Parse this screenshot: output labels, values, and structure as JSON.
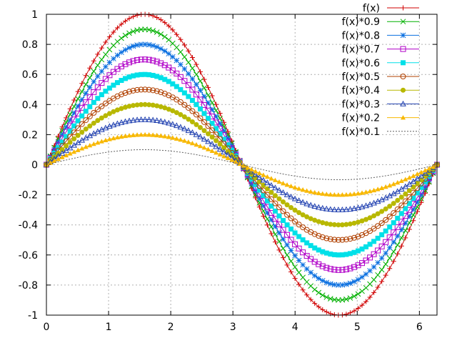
{
  "chart_data": {
    "type": "line",
    "title": "",
    "xlabel": "",
    "ylabel": "",
    "xlim": [
      0,
      6.2832
    ],
    "ylim": [
      -1,
      1
    ],
    "x_ticks": [
      "0",
      "1",
      "2",
      "3",
      "4",
      "5",
      "6"
    ],
    "y_ticks": [
      "1",
      "0.8",
      "0.6",
      "0.4",
      "0.2",
      "0",
      "-0.2",
      "-0.4",
      "-0.6",
      "-0.8",
      "-1"
    ],
    "grid": true,
    "legend_position": "top-right",
    "function": "sin(x)",
    "samples": 100,
    "series": [
      {
        "name": "f(x)",
        "scale": 1.0,
        "color": "#d00000",
        "marker": "plus"
      },
      {
        "name": "f(x)*0.9",
        "scale": 0.9,
        "color": "#00b000",
        "marker": "cross"
      },
      {
        "name": "f(x)*0.8",
        "scale": 0.8,
        "color": "#0a6fe0",
        "marker": "star"
      },
      {
        "name": "f(x)*0.7",
        "scale": 0.7,
        "color": "#b000c8",
        "marker": "open-square"
      },
      {
        "name": "f(x)*0.6",
        "scale": 0.6,
        "color": "#00e0e8",
        "marker": "filled-square"
      },
      {
        "name": "f(x)*0.5",
        "scale": 0.5,
        "color": "#b04000",
        "marker": "open-circle"
      },
      {
        "name": "f(x)*0.4",
        "scale": 0.4,
        "color": "#b8b800",
        "marker": "filled-circle"
      },
      {
        "name": "f(x)*0.3",
        "scale": 0.3,
        "color": "#2040b0",
        "marker": "open-triangle"
      },
      {
        "name": "f(x)*0.2",
        "scale": 0.2,
        "color": "#f8b800",
        "marker": "filled-triangle"
      },
      {
        "name": "f(x)*0.1",
        "scale": 0.1,
        "color": "#606060",
        "marker": "none"
      }
    ]
  }
}
